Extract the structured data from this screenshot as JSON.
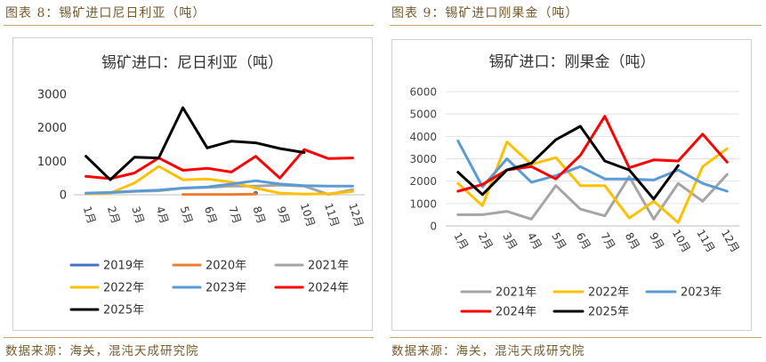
{
  "captions": {
    "left": "图表 8：锡矿进口尼日利亚（吨）",
    "right": "图表 9：锡矿进口刚果金（吨）"
  },
  "sources": {
    "left": "数据来源：海关，混沌天成研究院",
    "right": "数据来源：海关，混沌天成研究院"
  },
  "colors": {
    "2019年": "#4472c4",
    "2020年": "#ed7d31",
    "2021年": "#a5a5a5",
    "2022年": "#ffc000",
    "2023年": "#5b9bd5",
    "2024年": "#ff0000",
    "2025年": "#000000"
  },
  "chart_data": [
    {
      "type": "line",
      "title": "锡矿进口：尼日利亚（吨）",
      "categories": [
        "1月",
        "2月",
        "3月",
        "4月",
        "5月",
        "6月",
        "7月",
        "8月",
        "9月",
        "10月",
        "11月",
        "12月"
      ],
      "ylim": [
        0,
        3000
      ],
      "yticks": [
        0,
        1000,
        2000,
        3000
      ],
      "legend": "bottom",
      "series": [
        {
          "name": "2019年",
          "values": [
            null,
            null,
            null,
            null,
            null,
            null,
            null,
            50,
            null,
            null,
            null,
            null
          ]
        },
        {
          "name": "2020年",
          "values": [
            null,
            null,
            null,
            null,
            10,
            10,
            10,
            20,
            null,
            null,
            null,
            null
          ]
        },
        {
          "name": "2021年",
          "values": [
            30,
            60,
            100,
            120,
            200,
            220,
            260,
            260,
            290,
            260,
            10,
            150
          ]
        },
        {
          "name": "2022年",
          "values": [
            30,
            50,
            350,
            850,
            450,
            470,
            380,
            200,
            50,
            20,
            30,
            100
          ]
        },
        {
          "name": "2023年",
          "values": [
            50,
            70,
            110,
            140,
            200,
            230,
            320,
            420,
            320,
            270,
            260,
            260
          ]
        },
        {
          "name": "2024年",
          "values": [
            550,
            480,
            650,
            1100,
            730,
            790,
            680,
            1150,
            500,
            1350,
            1080,
            1100
          ]
        },
        {
          "name": "2025年",
          "values": [
            1150,
            450,
            1120,
            1100,
            2600,
            1400,
            1600,
            1550,
            1380,
            1260,
            null,
            null
          ]
        }
      ]
    },
    {
      "type": "line",
      "title": "锡矿进口：刚果金（吨）",
      "categories": [
        "1月",
        "2月",
        "3月",
        "4月",
        "5月",
        "6月",
        "7月",
        "8月",
        "9月",
        "10月",
        "11月",
        "12月"
      ],
      "ylim": [
        0,
        6000
      ],
      "yticks": [
        0,
        1000,
        2000,
        3000,
        4000,
        5000,
        6000
      ],
      "legend": "bottom",
      "series": [
        {
          "name": "2021年",
          "values": [
            500,
            500,
            650,
            300,
            1800,
            750,
            450,
            2200,
            300,
            1900,
            1100,
            2300
          ]
        },
        {
          "name": "2022年",
          "values": [
            1900,
            900,
            3750,
            2750,
            3050,
            1800,
            1800,
            350,
            1100,
            150,
            2650,
            3450
          ]
        },
        {
          "name": "2023年",
          "values": [
            3800,
            1750,
            3000,
            1950,
            2250,
            2650,
            2100,
            2100,
            2050,
            2500,
            1900,
            1550
          ]
        },
        {
          "name": "2024年",
          "values": [
            1550,
            1850,
            2500,
            2650,
            2100,
            3150,
            4900,
            2600,
            2950,
            2900,
            4100,
            2850
          ]
        },
        {
          "name": "2025年",
          "values": [
            2400,
            1400,
            2500,
            2800,
            3850,
            4450,
            2900,
            2500,
            1200,
            2700,
            null,
            null
          ]
        }
      ]
    }
  ]
}
